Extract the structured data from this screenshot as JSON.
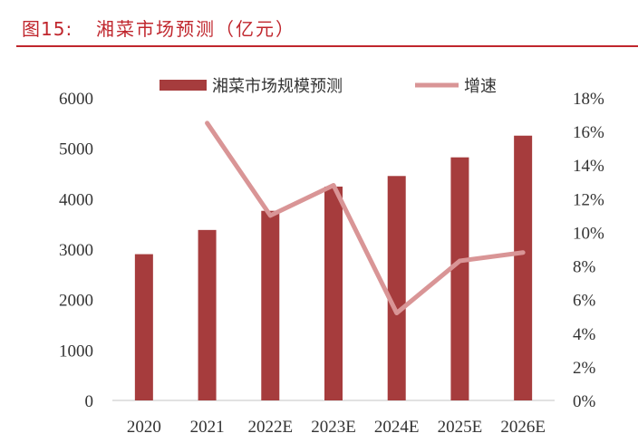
{
  "figure": {
    "label": "图15:",
    "title": "湘菜市场预测（亿元）"
  },
  "colors": {
    "title": "#c0262d",
    "bar": "#a63c3d",
    "line": "#d99596",
    "axis": "#d9d9d9",
    "text": "#333333"
  },
  "chart_data": {
    "type": "bar",
    "categories": [
      "2020",
      "2021",
      "2022E",
      "2023E",
      "2024E",
      "2025E",
      "2026E"
    ],
    "series": [
      {
        "name": "湘菜市场规模预测",
        "type": "bar",
        "axis": "left",
        "values": [
          2900,
          3380,
          3760,
          4240,
          4450,
          4820,
          5250
        ]
      },
      {
        "name": "增速",
        "type": "line",
        "axis": "right",
        "values": [
          null,
          16.5,
          11.0,
          12.8,
          5.2,
          8.3,
          8.8
        ]
      }
    ],
    "y_left": {
      "range": [
        0,
        6000
      ],
      "ticks": [
        "0",
        "1000",
        "2000",
        "3000",
        "4000",
        "5000",
        "6000"
      ]
    },
    "y_right": {
      "range": [
        0,
        18
      ],
      "ticks": [
        "0%",
        "2%",
        "4%",
        "6%",
        "8%",
        "10%",
        "12%",
        "14%",
        "16%",
        "18%"
      ]
    },
    "legend": {
      "position": "top-center"
    },
    "grid": false
  }
}
